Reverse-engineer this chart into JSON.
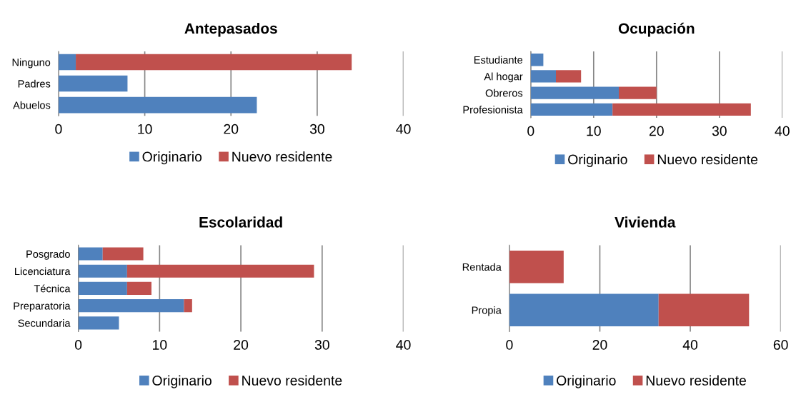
{
  "chart_data": [
    {
      "type": "bar",
      "orientation": "horizontal",
      "stacked": true,
      "title": "Antepasados",
      "categories": [
        "Ninguno",
        "Padres",
        "Abuelos"
      ],
      "series": [
        {
          "name": "Originario",
          "color": "#4f81bd",
          "values": [
            2,
            8,
            23
          ]
        },
        {
          "name": "Nuevo residente",
          "color": "#c0504d",
          "values": [
            32,
            0,
            0
          ]
        }
      ],
      "xlim": [
        0,
        40
      ],
      "xticks": [
        0,
        10,
        20,
        30,
        40
      ],
      "grid": "x",
      "legend": "bottom"
    },
    {
      "type": "bar",
      "orientation": "horizontal",
      "stacked": true,
      "title": "Ocupación",
      "categories": [
        "Estudiante",
        "Al hogar",
        "Obreros",
        "Profesionista"
      ],
      "series": [
        {
          "name": "Originario",
          "color": "#4f81bd",
          "values": [
            2,
            4,
            14,
            13
          ]
        },
        {
          "name": "Nuevo residente",
          "color": "#c0504d",
          "values": [
            0,
            4,
            6,
            22
          ]
        }
      ],
      "xlim": [
        0,
        40
      ],
      "xticks": [
        0,
        10,
        20,
        30,
        40
      ],
      "grid": "x",
      "legend": "bottom"
    },
    {
      "type": "bar",
      "orientation": "horizontal",
      "stacked": true,
      "title": "Escolaridad",
      "categories": [
        "Posgrado",
        "Licenciatura",
        "Técnica",
        "Preparatoria",
        "Secundaria"
      ],
      "series": [
        {
          "name": "Originario",
          "color": "#4f81bd",
          "values": [
            3,
            6,
            6,
            13,
            5
          ]
        },
        {
          "name": "Nuevo residente",
          "color": "#c0504d",
          "values": [
            5,
            23,
            3,
            1,
            0
          ]
        }
      ],
      "xlim": [
        0,
        40
      ],
      "xticks": [
        0,
        10,
        20,
        30,
        40
      ],
      "grid": "x",
      "legend": "bottom"
    },
    {
      "type": "bar",
      "orientation": "horizontal",
      "stacked": true,
      "title": "Vivienda",
      "categories": [
        "Rentada",
        "Propia"
      ],
      "series": [
        {
          "name": "Originario",
          "color": "#4f81bd",
          "values": [
            0,
            33
          ]
        },
        {
          "name": "Nuevo residente",
          "color": "#c0504d",
          "values": [
            12,
            20
          ]
        }
      ],
      "xlim": [
        0,
        60
      ],
      "xticks": [
        0,
        20,
        40,
        60
      ],
      "grid": "x",
      "legend": "bottom"
    }
  ]
}
